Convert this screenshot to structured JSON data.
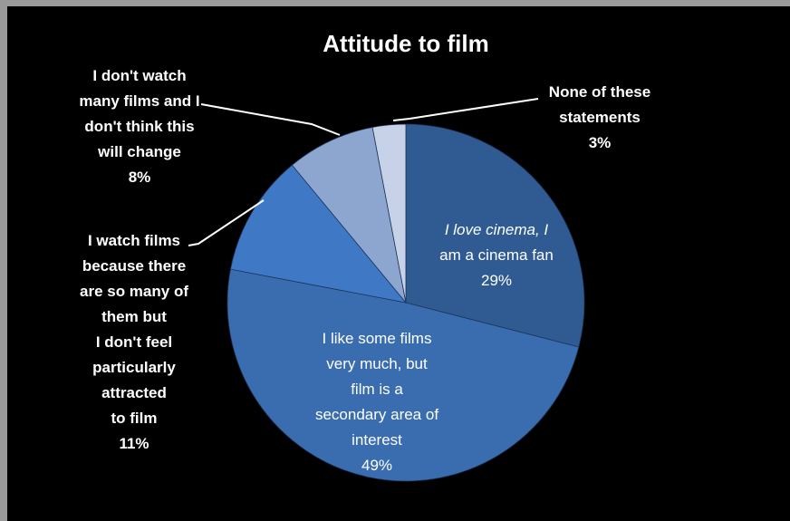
{
  "chart_data": {
    "type": "pie",
    "title": "Attitude to film",
    "start_angle_deg": 0,
    "direction": "clockwise",
    "slices": [
      {
        "label_lines": [
          "I love cinema, I",
          "am a cinema fan"
        ],
        "pct_label": "29%",
        "value": 29,
        "color": "#2f5a92",
        "label_style": "inside"
      },
      {
        "label_lines": [
          "I like some films",
          "very much, but",
          "film is a",
          "secondary area of",
          "interest"
        ],
        "pct_label": "49%",
        "value": 49,
        "color": "#3a6db0",
        "label_style": "inside"
      },
      {
        "label_lines": [
          "I watch films",
          "because there",
          "are so many of",
          "them but",
          "I don't feel",
          "particularly",
          "attracted",
          "to film"
        ],
        "pct_label": "11%",
        "value": 11,
        "color": "#3f79c6",
        "label_style": "outside"
      },
      {
        "label_lines": [
          "I don't watch",
          "many films and I",
          "don't think this",
          "will change"
        ],
        "pct_label": "8%",
        "value": 8,
        "color": "#8da6cf",
        "label_style": "outside"
      },
      {
        "label_lines": [
          "None of these",
          "statements"
        ],
        "pct_label": "3%",
        "value": 3,
        "color": "#c7d2e8",
        "label_style": "outside"
      }
    ]
  }
}
